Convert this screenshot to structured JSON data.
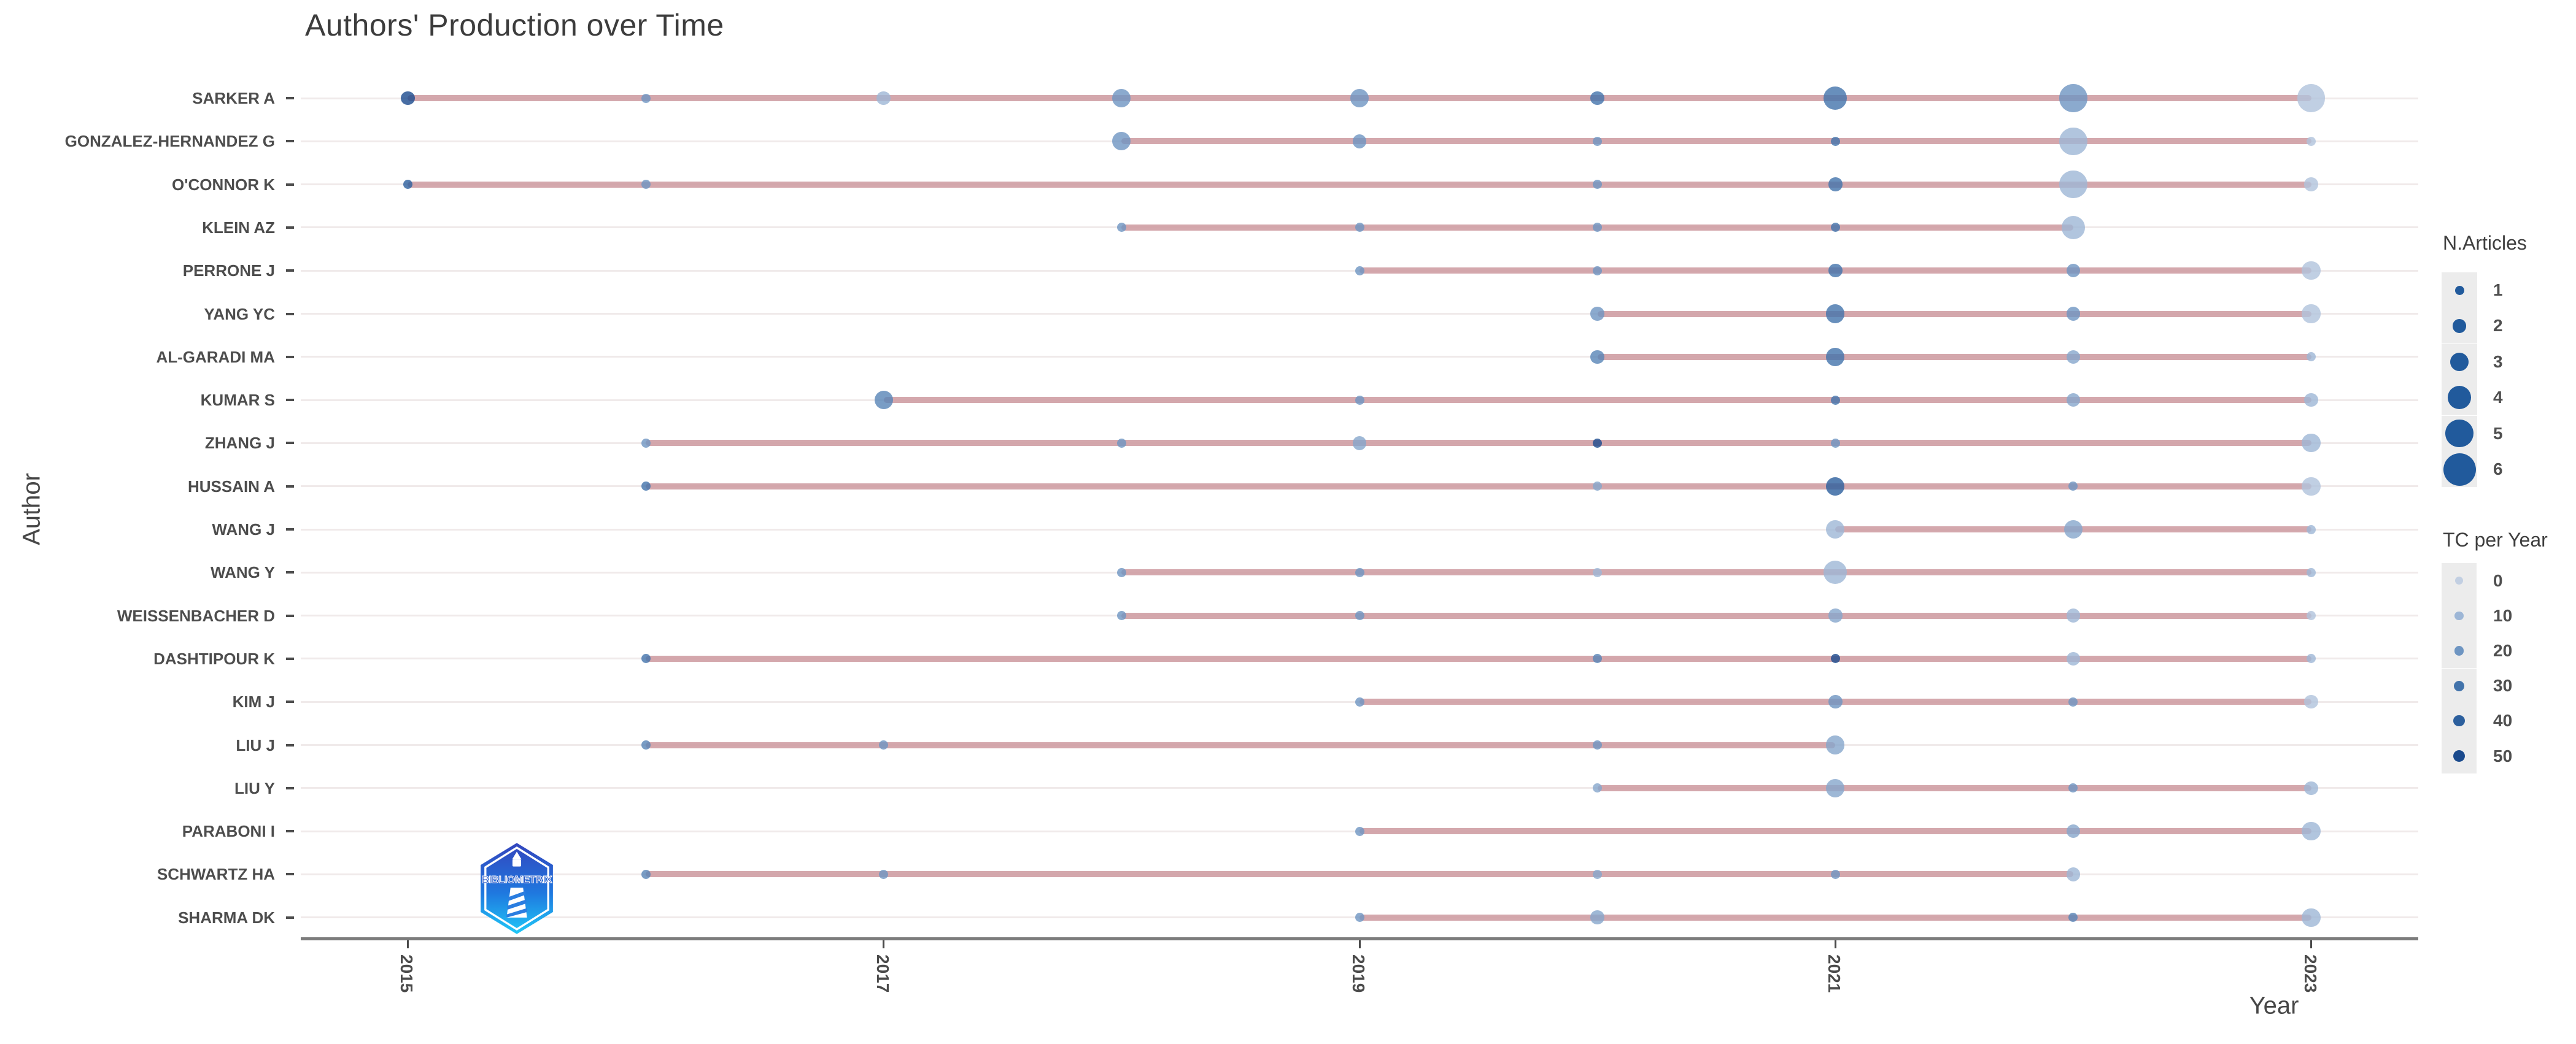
{
  "logo": {
    "text": "BIBLIOMETRIX"
  },
  "colors": {
    "timeline": "#cf9fa4",
    "gridline": "#f0eaea",
    "axis_line": "#7c7c7c",
    "tick_text": "#4a4a4a",
    "title_text": "#3c3c3c",
    "legend_key_bg": "#ececec",
    "legend_dot": "#215a9c",
    "tc_stops": [
      "#c2cfe2",
      "#9db6d6",
      "#6e95c2",
      "#4273ab",
      "#2c5f9d",
      "#1a4a8d"
    ]
  },
  "chart_data": {
    "type": "scatter",
    "title": "Authors' Production over Time",
    "xlabel": "Year",
    "ylabel": "Author",
    "x_ticks": [
      2015,
      2017,
      2019,
      2021,
      2023
    ],
    "x_domain": [
      2014.55,
      2023.45
    ],
    "size_legend": {
      "title": "N.Articles",
      "values": [
        1,
        2,
        3,
        4,
        5,
        6
      ]
    },
    "color_legend": {
      "title": "TC per Year",
      "values": [
        0,
        10,
        20,
        30,
        40,
        50
      ]
    },
    "series": [
      {
        "author": "SARKER A",
        "points": [
          {
            "year": 2015,
            "n": 2,
            "tc": 50
          },
          {
            "year": 2016,
            "n": 1,
            "tc": 20
          },
          {
            "year": 2017,
            "n": 2,
            "tc": 10
          },
          {
            "year": 2018,
            "n": 3,
            "tc": 20
          },
          {
            "year": 2019,
            "n": 3,
            "tc": 20
          },
          {
            "year": 2020,
            "n": 2,
            "tc": 30
          },
          {
            "year": 2021,
            "n": 4,
            "tc": 30
          },
          {
            "year": 2022,
            "n": 5,
            "tc": 20
          },
          {
            "year": 2023,
            "n": 5,
            "tc": 5
          }
        ]
      },
      {
        "author": "GONZALEZ-HERNANDEZ G",
        "points": [
          {
            "year": 2018,
            "n": 3,
            "tc": 20
          },
          {
            "year": 2019,
            "n": 2,
            "tc": 20
          },
          {
            "year": 2020,
            "n": 1,
            "tc": 20
          },
          {
            "year": 2021,
            "n": 1,
            "tc": 30
          },
          {
            "year": 2022,
            "n": 5,
            "tc": 10
          },
          {
            "year": 2023,
            "n": 1,
            "tc": 5
          }
        ]
      },
      {
        "author": "O'CONNOR K",
        "points": [
          {
            "year": 2015,
            "n": 1,
            "tc": 40
          },
          {
            "year": 2016,
            "n": 1,
            "tc": 20
          },
          {
            "year": 2020,
            "n": 1,
            "tc": 20
          },
          {
            "year": 2021,
            "n": 2,
            "tc": 30
          },
          {
            "year": 2022,
            "n": 5,
            "tc": 10
          },
          {
            "year": 2023,
            "n": 2,
            "tc": 5
          }
        ]
      },
      {
        "author": "KLEIN AZ",
        "points": [
          {
            "year": 2018,
            "n": 1,
            "tc": 20
          },
          {
            "year": 2019,
            "n": 1,
            "tc": 20
          },
          {
            "year": 2020,
            "n": 1,
            "tc": 20
          },
          {
            "year": 2021,
            "n": 1,
            "tc": 30
          },
          {
            "year": 2022,
            "n": 4,
            "tc": 10
          }
        ]
      },
      {
        "author": "PERRONE J",
        "points": [
          {
            "year": 2019,
            "n": 1,
            "tc": 20
          },
          {
            "year": 2020,
            "n": 1,
            "tc": 20
          },
          {
            "year": 2021,
            "n": 2,
            "tc": 30
          },
          {
            "year": 2022,
            "n": 2,
            "tc": 20
          },
          {
            "year": 2023,
            "n": 3,
            "tc": 5
          }
        ]
      },
      {
        "author": "YANG YC",
        "points": [
          {
            "year": 2020,
            "n": 2,
            "tc": 20
          },
          {
            "year": 2021,
            "n": 3,
            "tc": 30
          },
          {
            "year": 2022,
            "n": 2,
            "tc": 20
          },
          {
            "year": 2023,
            "n": 3,
            "tc": 5
          }
        ]
      },
      {
        "author": "AL-GARADI MA",
        "points": [
          {
            "year": 2020,
            "n": 2,
            "tc": 25
          },
          {
            "year": 2021,
            "n": 3,
            "tc": 30
          },
          {
            "year": 2022,
            "n": 2,
            "tc": 15
          },
          {
            "year": 2023,
            "n": 1,
            "tc": 10
          }
        ]
      },
      {
        "author": "KUMAR S",
        "points": [
          {
            "year": 2017,
            "n": 3,
            "tc": 25
          },
          {
            "year": 2019,
            "n": 1,
            "tc": 20
          },
          {
            "year": 2021,
            "n": 1,
            "tc": 30
          },
          {
            "year": 2022,
            "n": 2,
            "tc": 15
          },
          {
            "year": 2023,
            "n": 2,
            "tc": 10
          }
        ]
      },
      {
        "author": "ZHANG J",
        "points": [
          {
            "year": 2016,
            "n": 1,
            "tc": 20
          },
          {
            "year": 2018,
            "n": 1,
            "tc": 20
          },
          {
            "year": 2019,
            "n": 2,
            "tc": 15
          },
          {
            "year": 2020,
            "n": 1,
            "tc": 50
          },
          {
            "year": 2021,
            "n": 1,
            "tc": 20
          },
          {
            "year": 2023,
            "n": 3,
            "tc": 10
          }
        ]
      },
      {
        "author": "HUSSAIN A",
        "points": [
          {
            "year": 2016,
            "n": 1,
            "tc": 30
          },
          {
            "year": 2020,
            "n": 1,
            "tc": 15
          },
          {
            "year": 2021,
            "n": 3,
            "tc": 40
          },
          {
            "year": 2022,
            "n": 1,
            "tc": 20
          },
          {
            "year": 2023,
            "n": 3,
            "tc": 5
          }
        ]
      },
      {
        "author": "WANG J",
        "points": [
          {
            "year": 2021,
            "n": 3,
            "tc": 10
          },
          {
            "year": 2022,
            "n": 3,
            "tc": 15
          },
          {
            "year": 2023,
            "n": 1,
            "tc": 10
          }
        ]
      },
      {
        "author": "WANG Y",
        "points": [
          {
            "year": 2018,
            "n": 1,
            "tc": 20
          },
          {
            "year": 2019,
            "n": 1,
            "tc": 20
          },
          {
            "year": 2020,
            "n": 1,
            "tc": 10
          },
          {
            "year": 2021,
            "n": 4,
            "tc": 10
          },
          {
            "year": 2023,
            "n": 1,
            "tc": 10
          }
        ]
      },
      {
        "author": "WEISSENBACHER D",
        "points": [
          {
            "year": 2018,
            "n": 1,
            "tc": 20
          },
          {
            "year": 2019,
            "n": 1,
            "tc": 20
          },
          {
            "year": 2021,
            "n": 2,
            "tc": 15
          },
          {
            "year": 2022,
            "n": 2,
            "tc": 10
          },
          {
            "year": 2023,
            "n": 1,
            "tc": 5
          }
        ]
      },
      {
        "author": "DASHTIPOUR K",
        "points": [
          {
            "year": 2016,
            "n": 1,
            "tc": 30
          },
          {
            "year": 2020,
            "n": 1,
            "tc": 25
          },
          {
            "year": 2021,
            "n": 1,
            "tc": 50
          },
          {
            "year": 2022,
            "n": 2,
            "tc": 10
          },
          {
            "year": 2023,
            "n": 1,
            "tc": 10
          }
        ]
      },
      {
        "author": "KIM J",
        "points": [
          {
            "year": 2019,
            "n": 1,
            "tc": 20
          },
          {
            "year": 2021,
            "n": 2,
            "tc": 20
          },
          {
            "year": 2022,
            "n": 1,
            "tc": 20
          },
          {
            "year": 2023,
            "n": 2,
            "tc": 5
          }
        ]
      },
      {
        "author": "LIU J",
        "points": [
          {
            "year": 2016,
            "n": 1,
            "tc": 25
          },
          {
            "year": 2017,
            "n": 1,
            "tc": 20
          },
          {
            "year": 2020,
            "n": 1,
            "tc": 20
          },
          {
            "year": 2021,
            "n": 3,
            "tc": 15
          }
        ]
      },
      {
        "author": "LIU Y",
        "points": [
          {
            "year": 2020,
            "n": 1,
            "tc": 15
          },
          {
            "year": 2021,
            "n": 3,
            "tc": 15
          },
          {
            "year": 2022,
            "n": 1,
            "tc": 20
          },
          {
            "year": 2023,
            "n": 2,
            "tc": 10
          }
        ]
      },
      {
        "author": "PARABONI I",
        "points": [
          {
            "year": 2019,
            "n": 1,
            "tc": 20
          },
          {
            "year": 2022,
            "n": 2,
            "tc": 15
          },
          {
            "year": 2023,
            "n": 3,
            "tc": 10
          }
        ]
      },
      {
        "author": "SCHWARTZ HA",
        "points": [
          {
            "year": 2016,
            "n": 1,
            "tc": 25
          },
          {
            "year": 2017,
            "n": 1,
            "tc": 20
          },
          {
            "year": 2020,
            "n": 1,
            "tc": 15
          },
          {
            "year": 2021,
            "n": 1,
            "tc": 20
          },
          {
            "year": 2022,
            "n": 2,
            "tc": 10
          }
        ]
      },
      {
        "author": "SHARMA DK",
        "points": [
          {
            "year": 2019,
            "n": 1,
            "tc": 20
          },
          {
            "year": 2020,
            "n": 2,
            "tc": 15
          },
          {
            "year": 2022,
            "n": 1,
            "tc": 25
          },
          {
            "year": 2023,
            "n": 3,
            "tc": 10
          }
        ]
      }
    ]
  }
}
